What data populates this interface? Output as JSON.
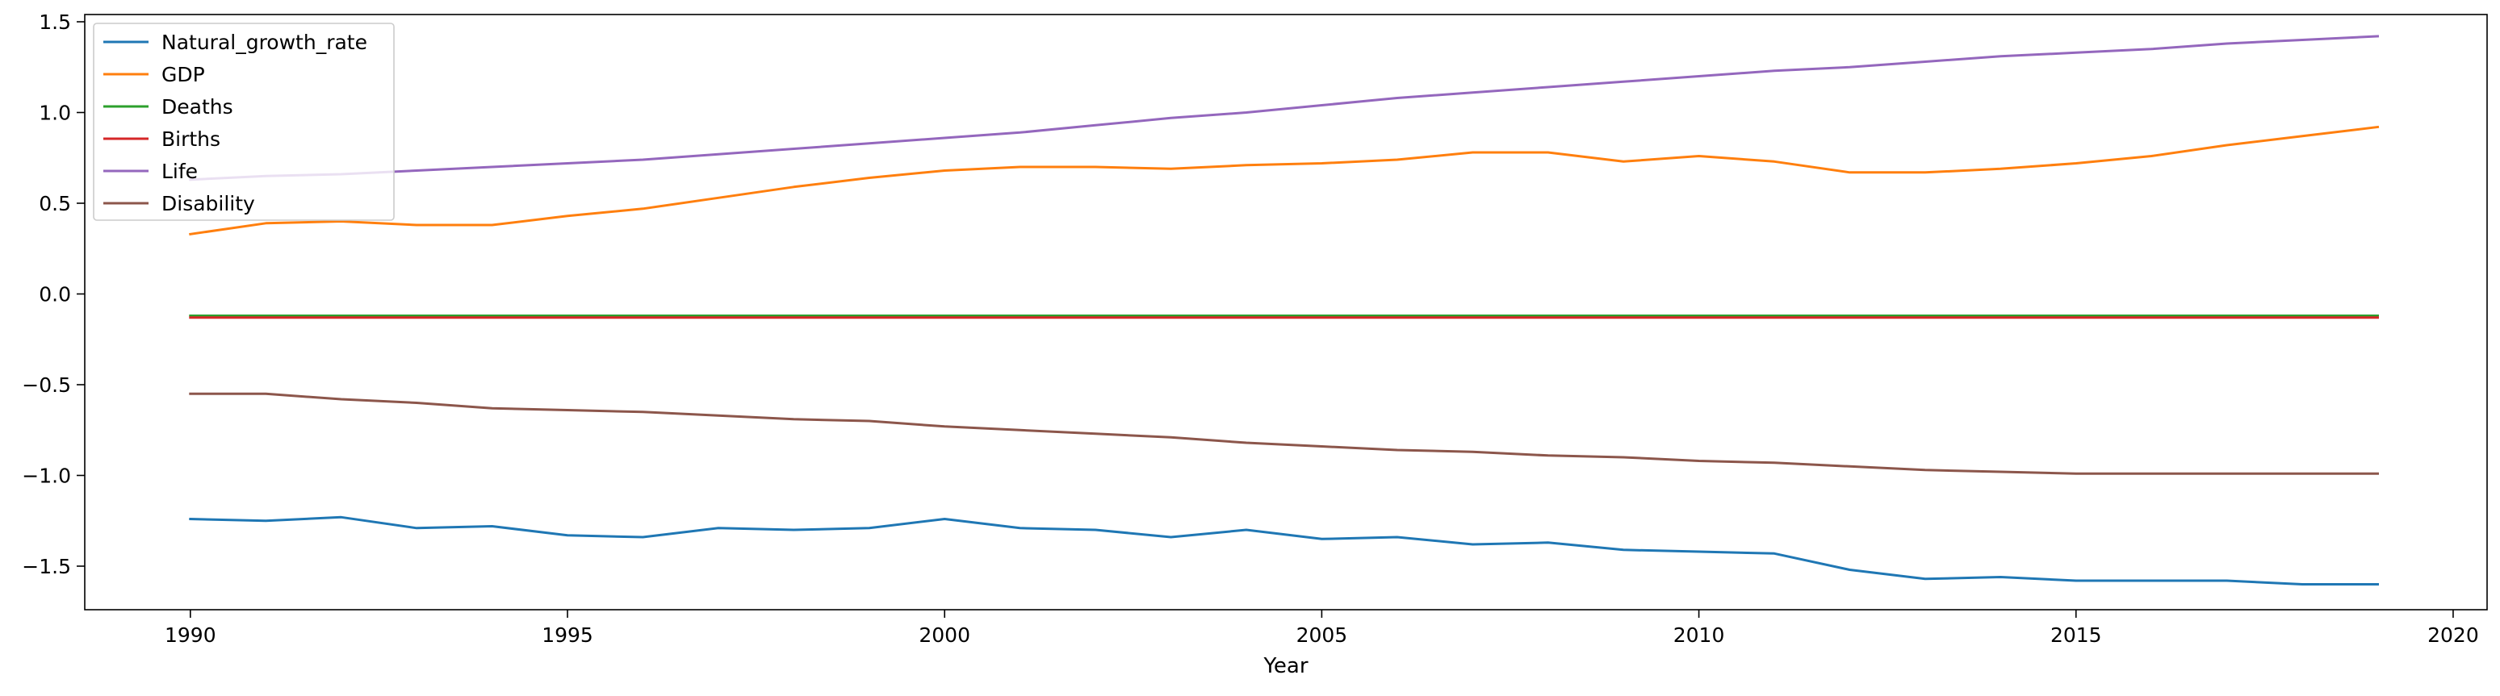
{
  "chart_data": {
    "type": "line",
    "title": "",
    "xlabel": "Year",
    "ylabel": "",
    "xlim": [
      1988.6,
      2020.45
    ],
    "ylim": [
      -1.74,
      1.54
    ],
    "xticks": [
      1990,
      1995,
      2000,
      2005,
      2010,
      2015,
      2020
    ],
    "xtick_labels": [
      "1990",
      "1995",
      "2000",
      "2005",
      "2010",
      "2015",
      "2020"
    ],
    "yticks": [
      1.5,
      1.0,
      0.5,
      0.0,
      -0.5,
      -1.0,
      -1.5
    ],
    "ytick_labels": [
      "1.5",
      "1.0",
      "0.5",
      "0.0",
      "−0.5",
      "−1.0",
      "−1.5"
    ],
    "grid": false,
    "legend_position": "top-left",
    "x": [
      1990,
      1991,
      1992,
      1993,
      1994,
      1995,
      1996,
      1997,
      1998,
      1999,
      2000,
      2001,
      2002,
      2003,
      2004,
      2005,
      2006,
      2007,
      2008,
      2009,
      2010,
      2011,
      2012,
      2013,
      2014,
      2015,
      2016,
      2017,
      2018,
      2019
    ],
    "series": [
      {
        "name": "Natural_growth_rate",
        "color": "#1f77b4",
        "values": [
          -1.24,
          -1.25,
          -1.23,
          -1.29,
          -1.28,
          -1.33,
          -1.34,
          -1.29,
          -1.3,
          -1.29,
          -1.24,
          -1.29,
          -1.3,
          -1.34,
          -1.3,
          -1.35,
          -1.34,
          -1.38,
          -1.37,
          -1.41,
          -1.42,
          -1.43,
          -1.52,
          -1.57,
          -1.56,
          -1.58,
          -1.58,
          -1.58,
          -1.6,
          -1.6
        ]
      },
      {
        "name": "GDP",
        "color": "#ff7f0e",
        "values": [
          0.33,
          0.39,
          0.4,
          0.38,
          0.38,
          0.43,
          0.47,
          0.53,
          0.59,
          0.64,
          0.68,
          0.7,
          0.7,
          0.69,
          0.71,
          0.72,
          0.74,
          0.78,
          0.78,
          0.73,
          0.76,
          0.73,
          0.67,
          0.67,
          0.69,
          0.72,
          0.76,
          0.82,
          0.87,
          0.92
        ]
      },
      {
        "name": "Deaths",
        "color": "#2ca02c",
        "values": [
          -0.12,
          -0.12,
          -0.12,
          -0.12,
          -0.12,
          -0.12,
          -0.12,
          -0.12,
          -0.12,
          -0.12,
          -0.12,
          -0.12,
          -0.12,
          -0.12,
          -0.12,
          -0.12,
          -0.12,
          -0.12,
          -0.12,
          -0.12,
          -0.12,
          -0.12,
          -0.12,
          -0.12,
          -0.12,
          -0.12,
          -0.12,
          -0.12,
          -0.12,
          -0.12
        ]
      },
      {
        "name": "Births",
        "color": "#d62728",
        "values": [
          -0.13,
          -0.13,
          -0.13,
          -0.13,
          -0.13,
          -0.13,
          -0.13,
          -0.13,
          -0.13,
          -0.13,
          -0.13,
          -0.13,
          -0.13,
          -0.13,
          -0.13,
          -0.13,
          -0.13,
          -0.13,
          -0.13,
          -0.13,
          -0.13,
          -0.13,
          -0.13,
          -0.13,
          -0.13,
          -0.13,
          -0.13,
          -0.13,
          -0.13,
          -0.13
        ]
      },
      {
        "name": "Life",
        "color": "#9467bd",
        "values": [
          0.63,
          0.65,
          0.66,
          0.68,
          0.7,
          0.72,
          0.74,
          0.77,
          0.8,
          0.83,
          0.86,
          0.89,
          0.93,
          0.97,
          1.0,
          1.04,
          1.08,
          1.11,
          1.14,
          1.17,
          1.2,
          1.23,
          1.25,
          1.28,
          1.31,
          1.33,
          1.35,
          1.38,
          1.4,
          1.42
        ]
      },
      {
        "name": "Disability",
        "color": "#8c564b",
        "values": [
          -0.55,
          -0.55,
          -0.58,
          -0.6,
          -0.63,
          -0.64,
          -0.65,
          -0.67,
          -0.69,
          -0.7,
          -0.73,
          -0.75,
          -0.77,
          -0.79,
          -0.82,
          -0.84,
          -0.86,
          -0.87,
          -0.89,
          -0.9,
          -0.92,
          -0.93,
          -0.95,
          -0.97,
          -0.98,
          -0.99,
          -0.99,
          -0.99,
          -0.99,
          -0.99
        ]
      }
    ]
  }
}
